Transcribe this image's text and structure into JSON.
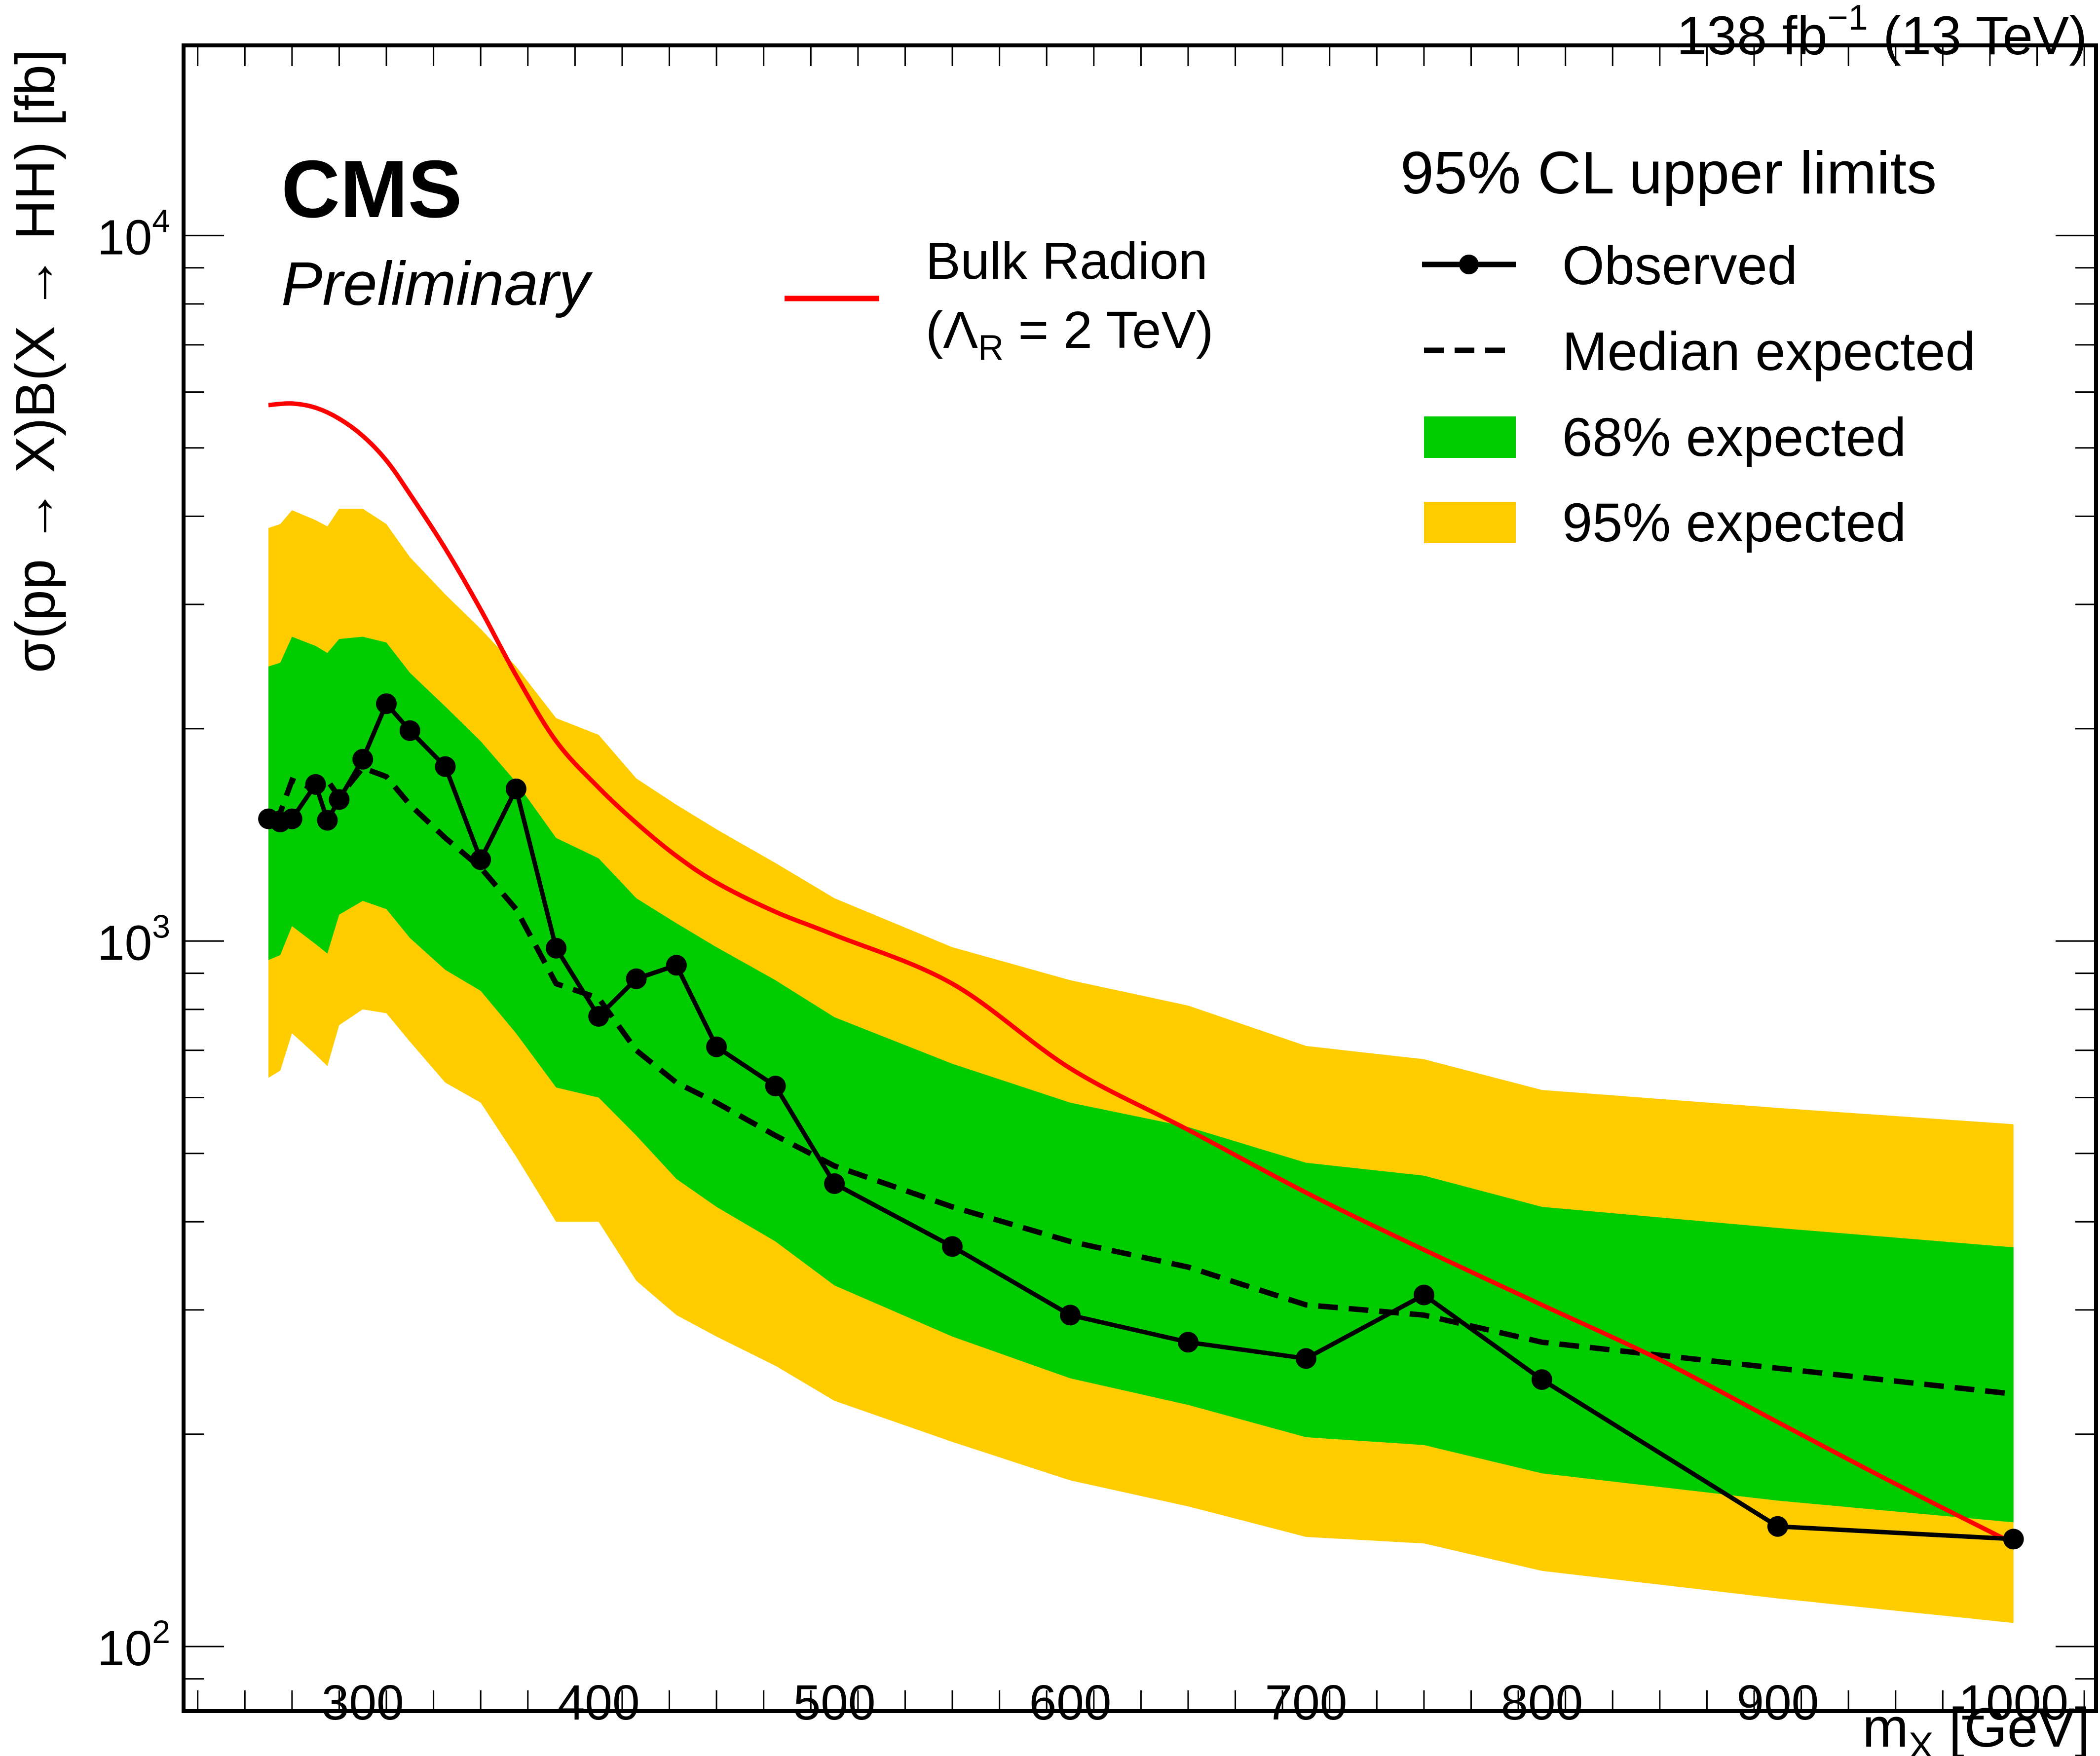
{
  "header": {
    "lumi_label": "138 fb",
    "lumi_exponent": "−1",
    "energy_label": "(13 TeV)"
  },
  "branding": {
    "experiment": "CMS",
    "status": "Preliminary"
  },
  "legend": {
    "title": "95% CL upper limits",
    "observed": "Observed",
    "median": "Median expected",
    "band68": "68% expected",
    "band95": "95% expected",
    "theory_line1": "Bulk Radion",
    "theory_line2_pre": "(Λ",
    "theory_line2_sub": "R",
    "theory_line2_post": " = 2 TeV)"
  },
  "colors": {
    "band68": "#00cc00",
    "band95": "#ffcc00",
    "theory": "#ff0000",
    "observed": "#000000"
  },
  "chart_data": {
    "type": "line",
    "title": "",
    "xlabel": "m_X [GeV]",
    "xlabel_main": "m",
    "xlabel_sub": "X",
    "xlabel_unit": " [GeV]",
    "ylabel": "σ(pp → X)B(X → HH) [fb]",
    "yscale": "log",
    "xlim": [
      224,
      1035
    ],
    "ylim": [
      81,
      18600
    ],
    "x_ticks": [
      300,
      400,
      500,
      600,
      700,
      800,
      900,
      1000
    ],
    "x_tick_labels": [
      "300",
      "400",
      "500",
      "600",
      "700",
      "800",
      "900",
      "1000"
    ],
    "y_ticks": [
      100,
      1000,
      10000
    ],
    "y_tick_labels": [
      {
        "base": "10",
        "exp": "2"
      },
      {
        "base": "10",
        "exp": "3"
      },
      {
        "base": "10",
        "exp": "4"
      }
    ],
    "legend_position": "top-right",
    "grid": false,
    "observed": {
      "name": "Observed",
      "x": [
        260,
        265,
        270,
        280,
        285,
        290,
        300,
        310,
        320,
        335,
        350,
        365,
        382,
        400,
        416,
        433,
        450,
        475,
        500,
        550,
        600,
        650,
        700,
        750,
        800,
        900,
        1000
      ],
      "y": [
        1490,
        1475,
        1490,
        1667,
        1483,
        1587,
        1810,
        2170,
        1987,
        1767,
        1304,
        1643,
        977,
        782,
        884,
        924,
        708,
        623,
        453,
        369,
        295,
        270,
        256,
        315,
        239,
        148,
        142
      ]
    },
    "expected": {
      "name": "Median expected",
      "x": [
        260,
        265,
        270,
        280,
        285,
        290,
        300,
        310,
        320,
        335,
        350,
        365,
        382,
        400,
        416,
        433,
        450,
        475,
        500,
        550,
        600,
        650,
        700,
        750,
        800,
        900,
        1000
      ],
      "y": [
        1500,
        1520,
        1690,
        1640,
        1690,
        1600,
        1760,
        1710,
        1560,
        1400,
        1270,
        1110,
        870,
        830,
        700,
        630,
        590,
        530,
        480,
        420,
        375,
        345,
        305,
        295,
        270,
        248,
        228
      ]
    },
    "band68": {
      "name": "68% expected",
      "x": [
        260,
        265,
        270,
        280,
        285,
        290,
        300,
        310,
        320,
        335,
        350,
        365,
        382,
        400,
        416,
        433,
        450,
        475,
        500,
        550,
        600,
        650,
        700,
        750,
        800,
        900,
        1000
      ],
      "low": [
        940,
        955,
        1050,
        990,
        960,
        1090,
        1140,
        1110,
        1010,
        910,
        850,
        740,
        620,
        600,
        530,
        460,
        420,
        375,
        325,
        275,
        240,
        220,
        198,
        193,
        176,
        161,
        150
      ],
      "high": [
        2450,
        2480,
        2700,
        2620,
        2560,
        2680,
        2700,
        2650,
        2400,
        2150,
        1920,
        1680,
        1400,
        1310,
        1150,
        1060,
        980,
        880,
        780,
        670,
        590,
        545,
        485,
        465,
        420,
        392,
        368
      ]
    },
    "band95": {
      "name": "95% expected",
      "x": [
        260,
        265,
        270,
        280,
        285,
        290,
        300,
        310,
        320,
        335,
        350,
        365,
        382,
        400,
        416,
        433,
        450,
        475,
        500,
        550,
        600,
        650,
        700,
        750,
        800,
        900,
        1000
      ],
      "low": [
        640,
        655,
        740,
        690,
        665,
        760,
        800,
        790,
        720,
        630,
        590,
        495,
        400,
        400,
        330,
        295,
        275,
        250,
        223,
        195,
        172,
        158,
        143,
        140,
        128,
        117,
        108
      ],
      "high": [
        3850,
        3900,
        4080,
        3950,
        3870,
        4100,
        4100,
        3900,
        3500,
        3100,
        2770,
        2450,
        2070,
        1960,
        1700,
        1560,
        1440,
        1290,
        1150,
        980,
        880,
        810,
        710,
        680,
        615,
        580,
        550
      ]
    },
    "theory": {
      "name": "Bulk Radion (Λ_R = 2 TeV)",
      "x": [
        260,
        270,
        280,
        290,
        300,
        310,
        320,
        335,
        350,
        365,
        382,
        400,
        416,
        433,
        450,
        475,
        500,
        550,
        600,
        650,
        700,
        750,
        800,
        850,
        900,
        950,
        1000
      ],
      "y": [
        5750,
        5780,
        5700,
        5500,
        5200,
        4800,
        4300,
        3600,
        2950,
        2380,
        1920,
        1650,
        1470,
        1320,
        1210,
        1100,
        1020,
        870,
        660,
        540,
        440,
        365,
        305,
        255,
        208,
        170,
        140
      ]
    }
  }
}
